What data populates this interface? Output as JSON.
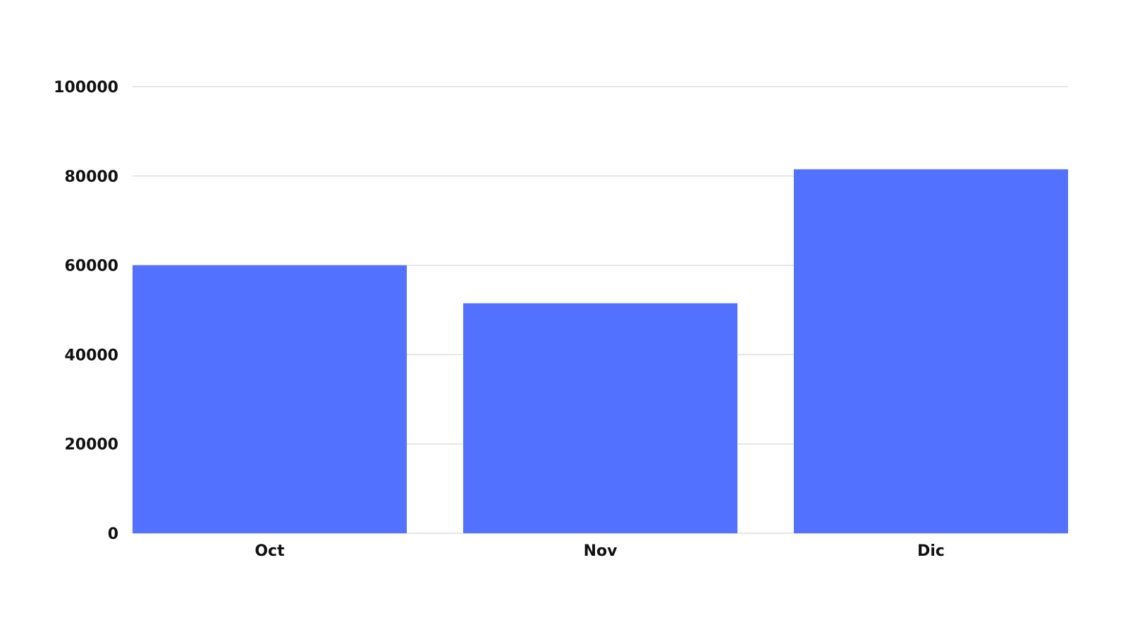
{
  "chart_data": {
    "type": "bar",
    "title": "",
    "xlabel": "",
    "ylabel": "",
    "categories": [
      "Oct",
      "Nov",
      "Dic"
    ],
    "values": [
      60000,
      51500,
      81500
    ],
    "ylim": [
      0,
      100000
    ],
    "yticks": [
      "0",
      "20000",
      "40000",
      "60000",
      "80000",
      "100000"
    ],
    "grid": true,
    "legend": "none",
    "bar_color": "#5271ff",
    "grid_color": "#dddddd"
  }
}
